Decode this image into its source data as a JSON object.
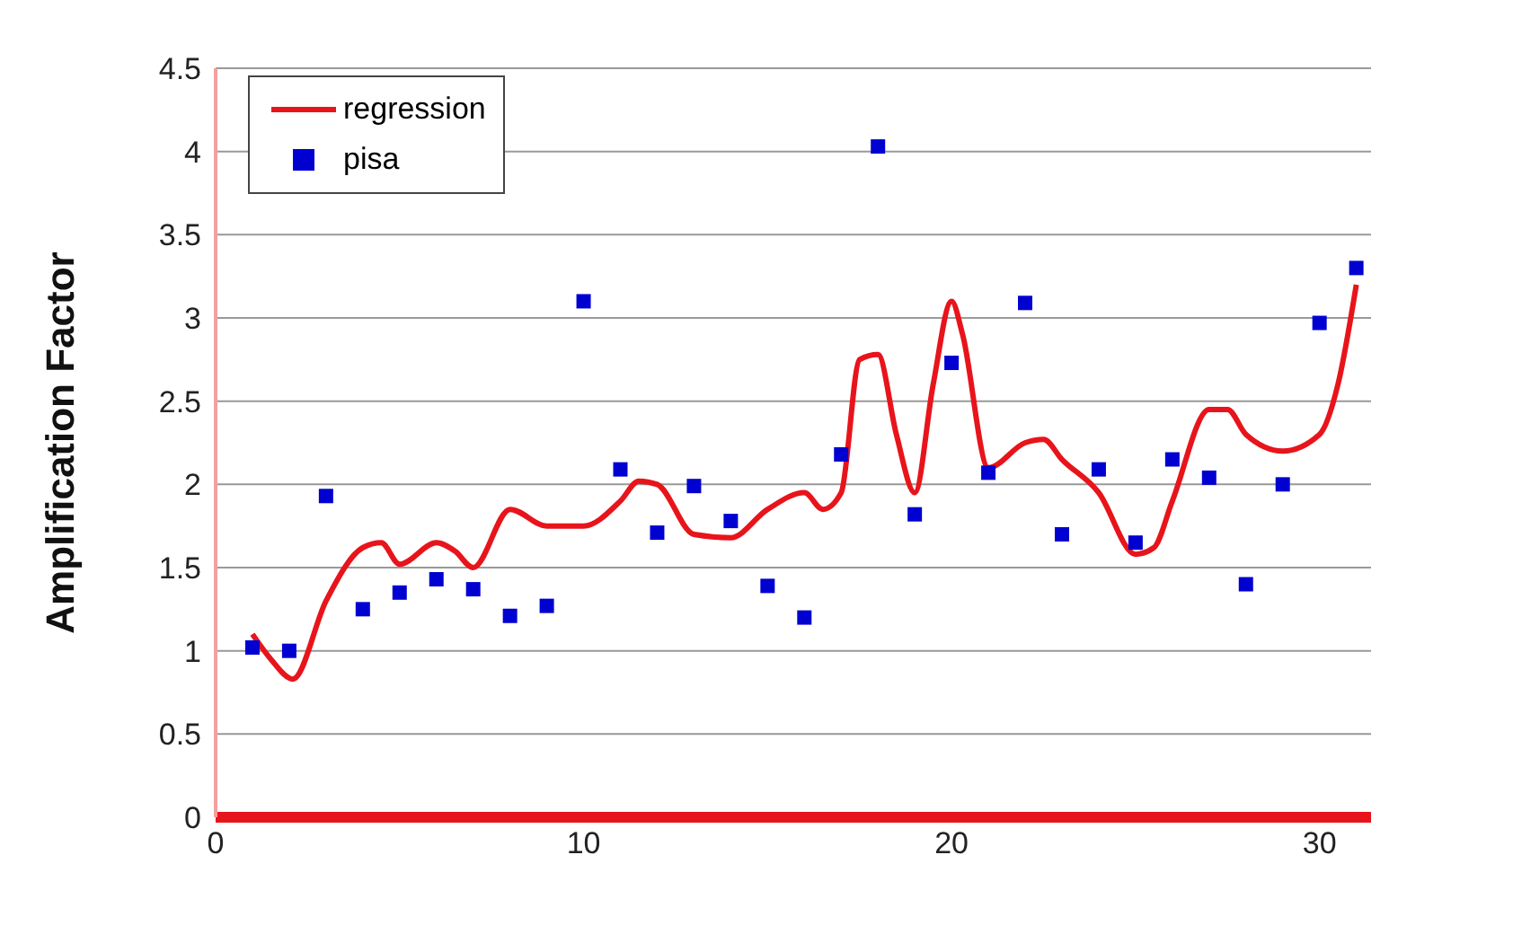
{
  "chart_data": {
    "type": "scatter",
    "ylabel": "Amplification Factor",
    "xlim": [
      0,
      31.4
    ],
    "xticks": [
      0,
      10,
      20,
      30
    ],
    "ylim": [
      0,
      4.5
    ],
    "yticks": [
      0,
      0.5,
      1,
      1.5,
      2,
      2.5,
      3,
      3.5,
      4,
      4.5
    ],
    "grid": "y",
    "legend": "top left",
    "series": [
      {
        "name": "regression",
        "type": "line",
        "color": "#e8141b",
        "marker": "none",
        "line_style": "solid",
        "x": [
          1,
          1.5,
          2.1,
          3,
          4,
          4.5,
          5,
          6,
          6.5,
          7,
          8,
          9,
          10,
          11,
          11.5,
          12,
          13,
          14,
          15,
          16,
          16.5,
          17,
          17.5,
          18,
          18.5,
          19,
          19.5,
          20,
          20.3,
          21,
          22,
          22.5,
          23,
          24,
          25,
          25.5,
          26,
          27,
          27.5,
          28,
          29,
          30,
          30.5,
          31
        ],
        "values": [
          1.1,
          0.95,
          0.83,
          1.3,
          1.62,
          1.65,
          1.52,
          1.65,
          1.6,
          1.5,
          1.85,
          1.75,
          1.75,
          1.9,
          2.02,
          2.0,
          1.7,
          1.68,
          1.85,
          1.95,
          1.85,
          1.95,
          2.75,
          2.78,
          2.3,
          1.95,
          2.6,
          3.1,
          2.9,
          2.1,
          2.25,
          2.27,
          2.15,
          1.95,
          1.58,
          1.62,
          1.9,
          2.45,
          2.45,
          2.3,
          2.2,
          2.3,
          2.6,
          3.2
        ]
      },
      {
        "name": "pisa",
        "color": "#0000d0",
        "marker": "square",
        "x": [
          1,
          2,
          3,
          4,
          5,
          6,
          7,
          8,
          9,
          10,
          11,
          12,
          13,
          14,
          15,
          16,
          17,
          18,
          19,
          20,
          21,
          22,
          23,
          24,
          25,
          26,
          27,
          28,
          29,
          30,
          31
        ],
        "values": [
          1.02,
          1.0,
          1.93,
          1.25,
          1.35,
          1.43,
          1.37,
          1.21,
          1.27,
          3.1,
          2.09,
          1.71,
          1.99,
          1.78,
          1.39,
          1.2,
          2.18,
          4.03,
          1.82,
          2.73,
          2.07,
          3.09,
          1.7,
          2.09,
          1.65,
          2.15,
          2.04,
          1.4,
          2.0,
          2.97,
          3.3
        ]
      }
    ]
  }
}
